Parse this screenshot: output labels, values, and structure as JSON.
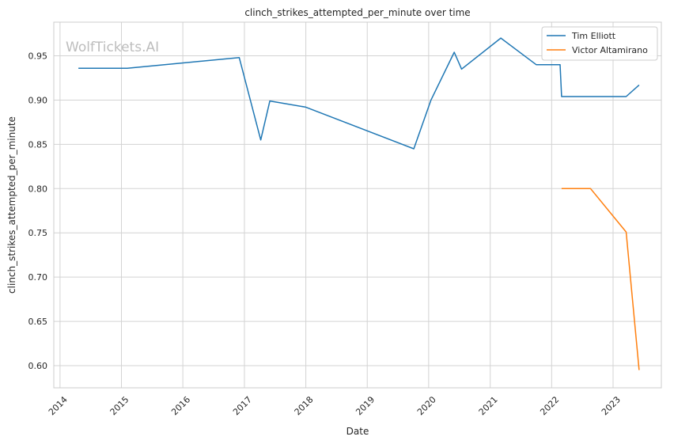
{
  "watermark": "WolfTickets.AI",
  "chart_data": {
    "type": "line",
    "title": "clinch_strikes_attempted_per_minute over time",
    "xlabel": "Date",
    "ylabel": "clinch_strikes_attempted_per_minute",
    "x_ticks": [
      "2014",
      "2015",
      "2016",
      "2017",
      "2018",
      "2019",
      "2020",
      "2021",
      "2022",
      "2023"
    ],
    "y_ticks": [
      "0.60",
      "0.65",
      "0.70",
      "0.75",
      "0.80",
      "0.85",
      "0.90",
      "0.95"
    ],
    "xlim": [
      "2013-11-25",
      "2023-10-15"
    ],
    "ylim": [
      0.575,
      0.988
    ],
    "grid": true,
    "legend_position": "top-right",
    "series": [
      {
        "name": "Tim Elliott",
        "color": "#1f77b4",
        "points": [
          {
            "x": "2014-04-20",
            "y": 0.936
          },
          {
            "x": "2015-02-05",
            "y": 0.936
          },
          {
            "x": "2016-12-01",
            "y": 0.948
          },
          {
            "x": "2017-04-08",
            "y": 0.855
          },
          {
            "x": "2017-06-01",
            "y": 0.899
          },
          {
            "x": "2018-01-01",
            "y": 0.892
          },
          {
            "x": "2019-10-05",
            "y": 0.845
          },
          {
            "x": "2020-01-15",
            "y": 0.9
          },
          {
            "x": "2020-06-01",
            "y": 0.954
          },
          {
            "x": "2020-07-15",
            "y": 0.935
          },
          {
            "x": "2021-03-05",
            "y": 0.97
          },
          {
            "x": "2021-10-01",
            "y": 0.94
          },
          {
            "x": "2022-02-20",
            "y": 0.94
          },
          {
            "x": "2022-03-01",
            "y": 0.904
          },
          {
            "x": "2023-03-20",
            "y": 0.904
          },
          {
            "x": "2023-06-05",
            "y": 0.917
          }
        ]
      },
      {
        "name": "Victor Altamirano",
        "color": "#ff7f0e",
        "points": [
          {
            "x": "2022-03-01",
            "y": 0.8
          },
          {
            "x": "2022-08-20",
            "y": 0.8
          },
          {
            "x": "2023-03-20",
            "y": 0.751
          },
          {
            "x": "2023-06-05",
            "y": 0.595
          }
        ]
      }
    ]
  }
}
